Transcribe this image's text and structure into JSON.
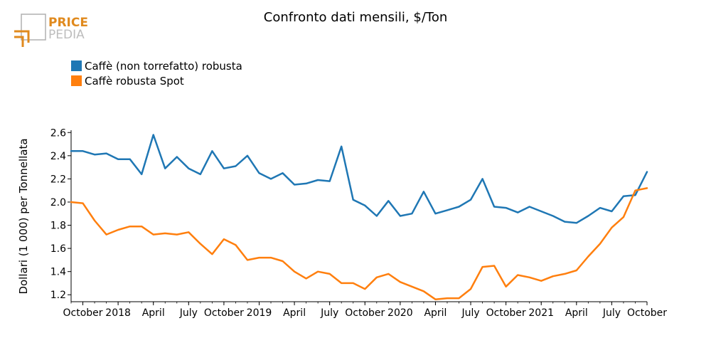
{
  "logo": {
    "line1": "PRICE",
    "line2": "PEDIA"
  },
  "chart_data": {
    "type": "line",
    "title": "Confronto dati mensili, $/Ton",
    "xlabel": "",
    "ylabel": "Dollari (1 000) per Tonnellata",
    "ylim": [
      1.14,
      2.62
    ],
    "yticks": [
      1.2,
      1.4,
      1.6,
      1.8,
      2.0,
      2.2,
      2.4,
      2.6
    ],
    "ytick_labels": [
      "1.2",
      "1.4",
      "1.6",
      "1.8",
      "2.0",
      "2.2",
      "2.4",
      "2.6"
    ],
    "x": [
      "2018-09",
      "2018-10",
      "2018-11",
      "2018-12",
      "2019-01",
      "2019-02",
      "2019-03",
      "2019-04",
      "2019-05",
      "2019-06",
      "2019-07",
      "2019-08",
      "2019-09",
      "2019-10",
      "2019-11",
      "2019-12",
      "2020-01",
      "2020-02",
      "2020-03",
      "2020-04",
      "2020-05",
      "2020-06",
      "2020-07",
      "2020-08",
      "2020-09",
      "2020-10",
      "2020-11",
      "2020-12",
      "2021-01",
      "2021-02",
      "2021-03",
      "2021-04",
      "2021-05",
      "2021-06",
      "2021-07",
      "2021-08",
      "2021-09",
      "2021-10",
      "2021-11",
      "2021-12",
      "2022-01",
      "2022-02",
      "2022-03",
      "2022-04",
      "2022-05",
      "2022-06",
      "2022-07",
      "2022-08",
      "2022-09",
      "2022-10"
    ],
    "xlim": [
      "2018-09",
      "2022-10"
    ],
    "xticks": [
      {
        "x": "2018-10",
        "label": "October"
      },
      {
        "x": "2019-01",
        "label": "2018"
      },
      {
        "x": "2019-04",
        "label": "April"
      },
      {
        "x": "2019-07",
        "label": "July"
      },
      {
        "x": "2019-10",
        "label": "October"
      },
      {
        "x": "2020-01",
        "label": "2019"
      },
      {
        "x": "2020-04",
        "label": "April"
      },
      {
        "x": "2020-07",
        "label": "July"
      },
      {
        "x": "2020-10",
        "label": "October"
      },
      {
        "x": "2021-01",
        "label": "2020"
      },
      {
        "x": "2021-04",
        "label": "April"
      },
      {
        "x": "2021-07",
        "label": "July"
      },
      {
        "x": "2021-10",
        "label": "October"
      },
      {
        "x": "2022-01",
        "label": "2021"
      },
      {
        "x": "2022-04",
        "label": "April"
      },
      {
        "x": "2022-07",
        "label": "July"
      },
      {
        "x": "2022-10",
        "label": "October"
      }
    ],
    "legend_position": "top-left",
    "grid": false,
    "series": [
      {
        "name": "Caffè (non torrefatto) robusta",
        "color": "#1f77b4",
        "values": [
          2.44,
          2.44,
          2.41,
          2.42,
          2.37,
          2.37,
          2.24,
          2.58,
          2.29,
          2.39,
          2.29,
          2.24,
          2.44,
          2.29,
          2.31,
          2.4,
          2.25,
          2.2,
          2.25,
          2.15,
          2.16,
          2.19,
          2.18,
          2.48,
          2.02,
          1.97,
          1.88,
          2.01,
          1.88,
          1.9,
          2.09,
          1.9,
          1.93,
          1.96,
          2.02,
          2.2,
          1.96,
          1.95,
          1.91,
          1.96,
          1.92,
          1.88,
          1.83,
          1.82,
          1.88,
          1.95,
          1.92,
          2.05,
          2.06,
          2.26
        ]
      },
      {
        "name": "Caffè robusta Spot",
        "color": "#ff7f0e",
        "values": [
          2.0,
          1.99,
          1.84,
          1.72,
          1.76,
          1.79,
          1.79,
          1.72,
          1.73,
          1.72,
          1.74,
          1.64,
          1.55,
          1.68,
          1.63,
          1.5,
          1.52,
          1.52,
          1.49,
          1.4,
          1.34,
          1.4,
          1.38,
          1.3,
          1.3,
          1.25,
          1.35,
          1.38,
          1.31,
          1.27,
          1.23,
          1.16,
          1.17,
          1.17,
          1.25,
          1.44,
          1.45,
          1.27,
          1.37,
          1.35,
          1.32,
          1.36,
          1.38,
          1.41,
          1.53,
          1.64,
          1.78,
          1.87,
          2.1,
          2.12
        ]
      }
    ]
  }
}
